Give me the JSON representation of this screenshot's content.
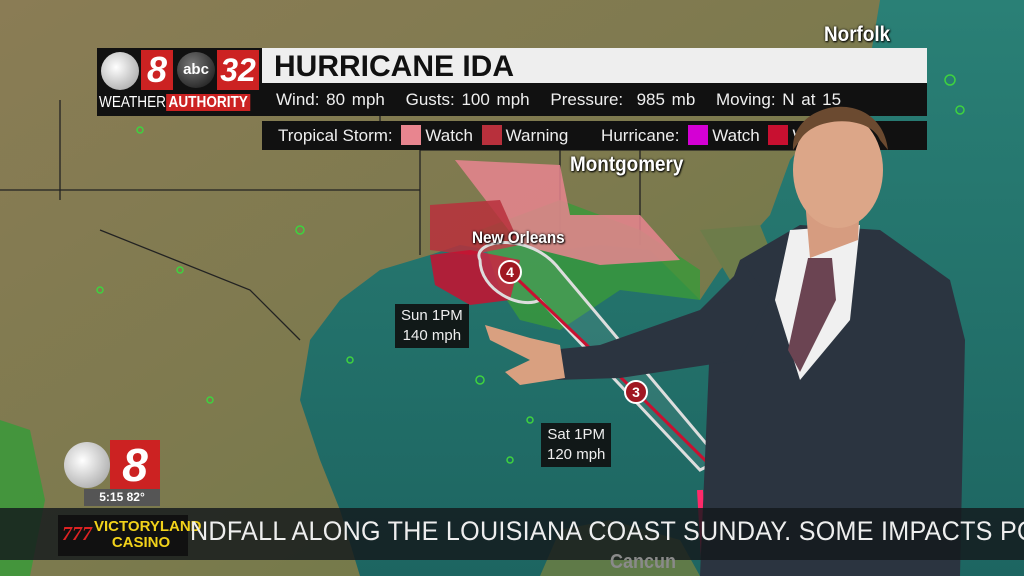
{
  "broadcast": {
    "station_logo": {
      "cbs_number": "8",
      "abc_number": "32",
      "abc_text": "abc",
      "tagline_left": "WEATHER",
      "tagline_right": "AUTHORITY"
    },
    "title": "HURRICANE IDA",
    "stats": {
      "wind": "Wind: 80 mph",
      "gusts": "Gusts: 100 mph",
      "pressure": "Pressure:  985 mb",
      "moving": "Moving: N at 15"
    },
    "legend": {
      "tropical_storm_label": "Tropical Storm:",
      "hurricane_label": "Hurricane:",
      "watch": "Watch",
      "warning": "Warning",
      "colors": {
        "ts_watch": "#e8858f",
        "ts_warning": "#b8303c",
        "hurricane_watch": "#d400d4",
        "hurricane_warning": "#c81030"
      }
    }
  },
  "map": {
    "cities": [
      "Norfolk",
      "Montgomery",
      "New Orleans",
      "Cancun"
    ],
    "forecast_points": [
      {
        "label": "Sun 1PM",
        "wind": "140 mph",
        "category": "4"
      },
      {
        "label": "Sat 1PM",
        "wind": "120 mph",
        "category": "3"
      }
    ]
  },
  "corner_bug": {
    "number": "8",
    "time_temp": "5:15 82°"
  },
  "ticker": {
    "sponsor_number": "777",
    "sponsor_name": "VICTORYLAND CASINO",
    "text": "NDFALL ALONG THE LOUISIANA COAST SUNDAY. SOME IMPACTS PO"
  }
}
